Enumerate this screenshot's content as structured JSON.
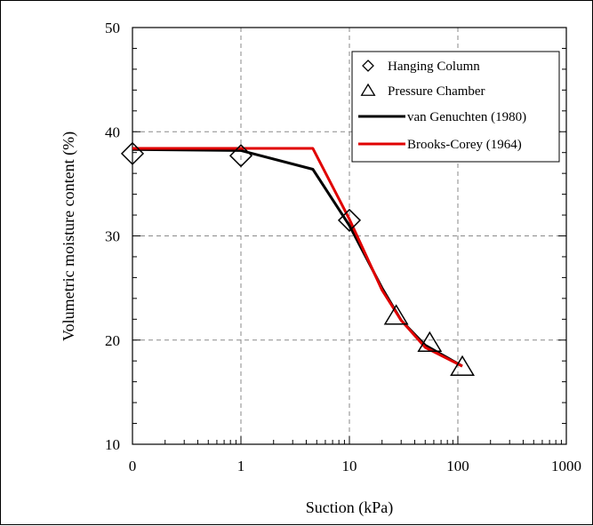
{
  "chart_data": {
    "type": "line",
    "xlabel": "Suction (kPa)",
    "ylabel": "Volumetric moisture content (%)",
    "x_scale": "log",
    "xlim": [
      0.1,
      1000
    ],
    "ylim": [
      10,
      50
    ],
    "x_tick_labels": [
      "0",
      "1",
      "10",
      "100",
      "1000"
    ],
    "x_tick_values": [
      0.1,
      1,
      10,
      100,
      1000
    ],
    "y_ticks": [
      10,
      20,
      30,
      40,
      50
    ],
    "grid": true,
    "legend_position": "top-right",
    "series": [
      {
        "name": "Hanging Column",
        "kind": "marker",
        "marker": "diamond",
        "color": "#000000",
        "x": [
          0.1,
          1,
          10
        ],
        "y": [
          37.9,
          37.7,
          31.5
        ]
      },
      {
        "name": "Pressure Chamber",
        "kind": "marker",
        "marker": "triangle",
        "color": "#000000",
        "x": [
          27,
          55,
          110
        ],
        "y": [
          22.3,
          19.7,
          17.4
        ]
      },
      {
        "name": "van Genuchten (1980)",
        "kind": "line",
        "color": "#000000",
        "x": [
          0.1,
          1,
          4.6,
          10,
          20,
          30,
          50,
          110
        ],
        "y": [
          38.3,
          38.2,
          36.4,
          31.0,
          25.0,
          21.9,
          19.5,
          17.5
        ]
      },
      {
        "name": "Brooks-Corey (1964)",
        "kind": "line",
        "color": "#e00000",
        "x": [
          0.1,
          4.6,
          10,
          20,
          30,
          50,
          110
        ],
        "y": [
          38.4,
          38.4,
          31.6,
          24.8,
          21.9,
          19.3,
          17.5
        ]
      }
    ]
  }
}
